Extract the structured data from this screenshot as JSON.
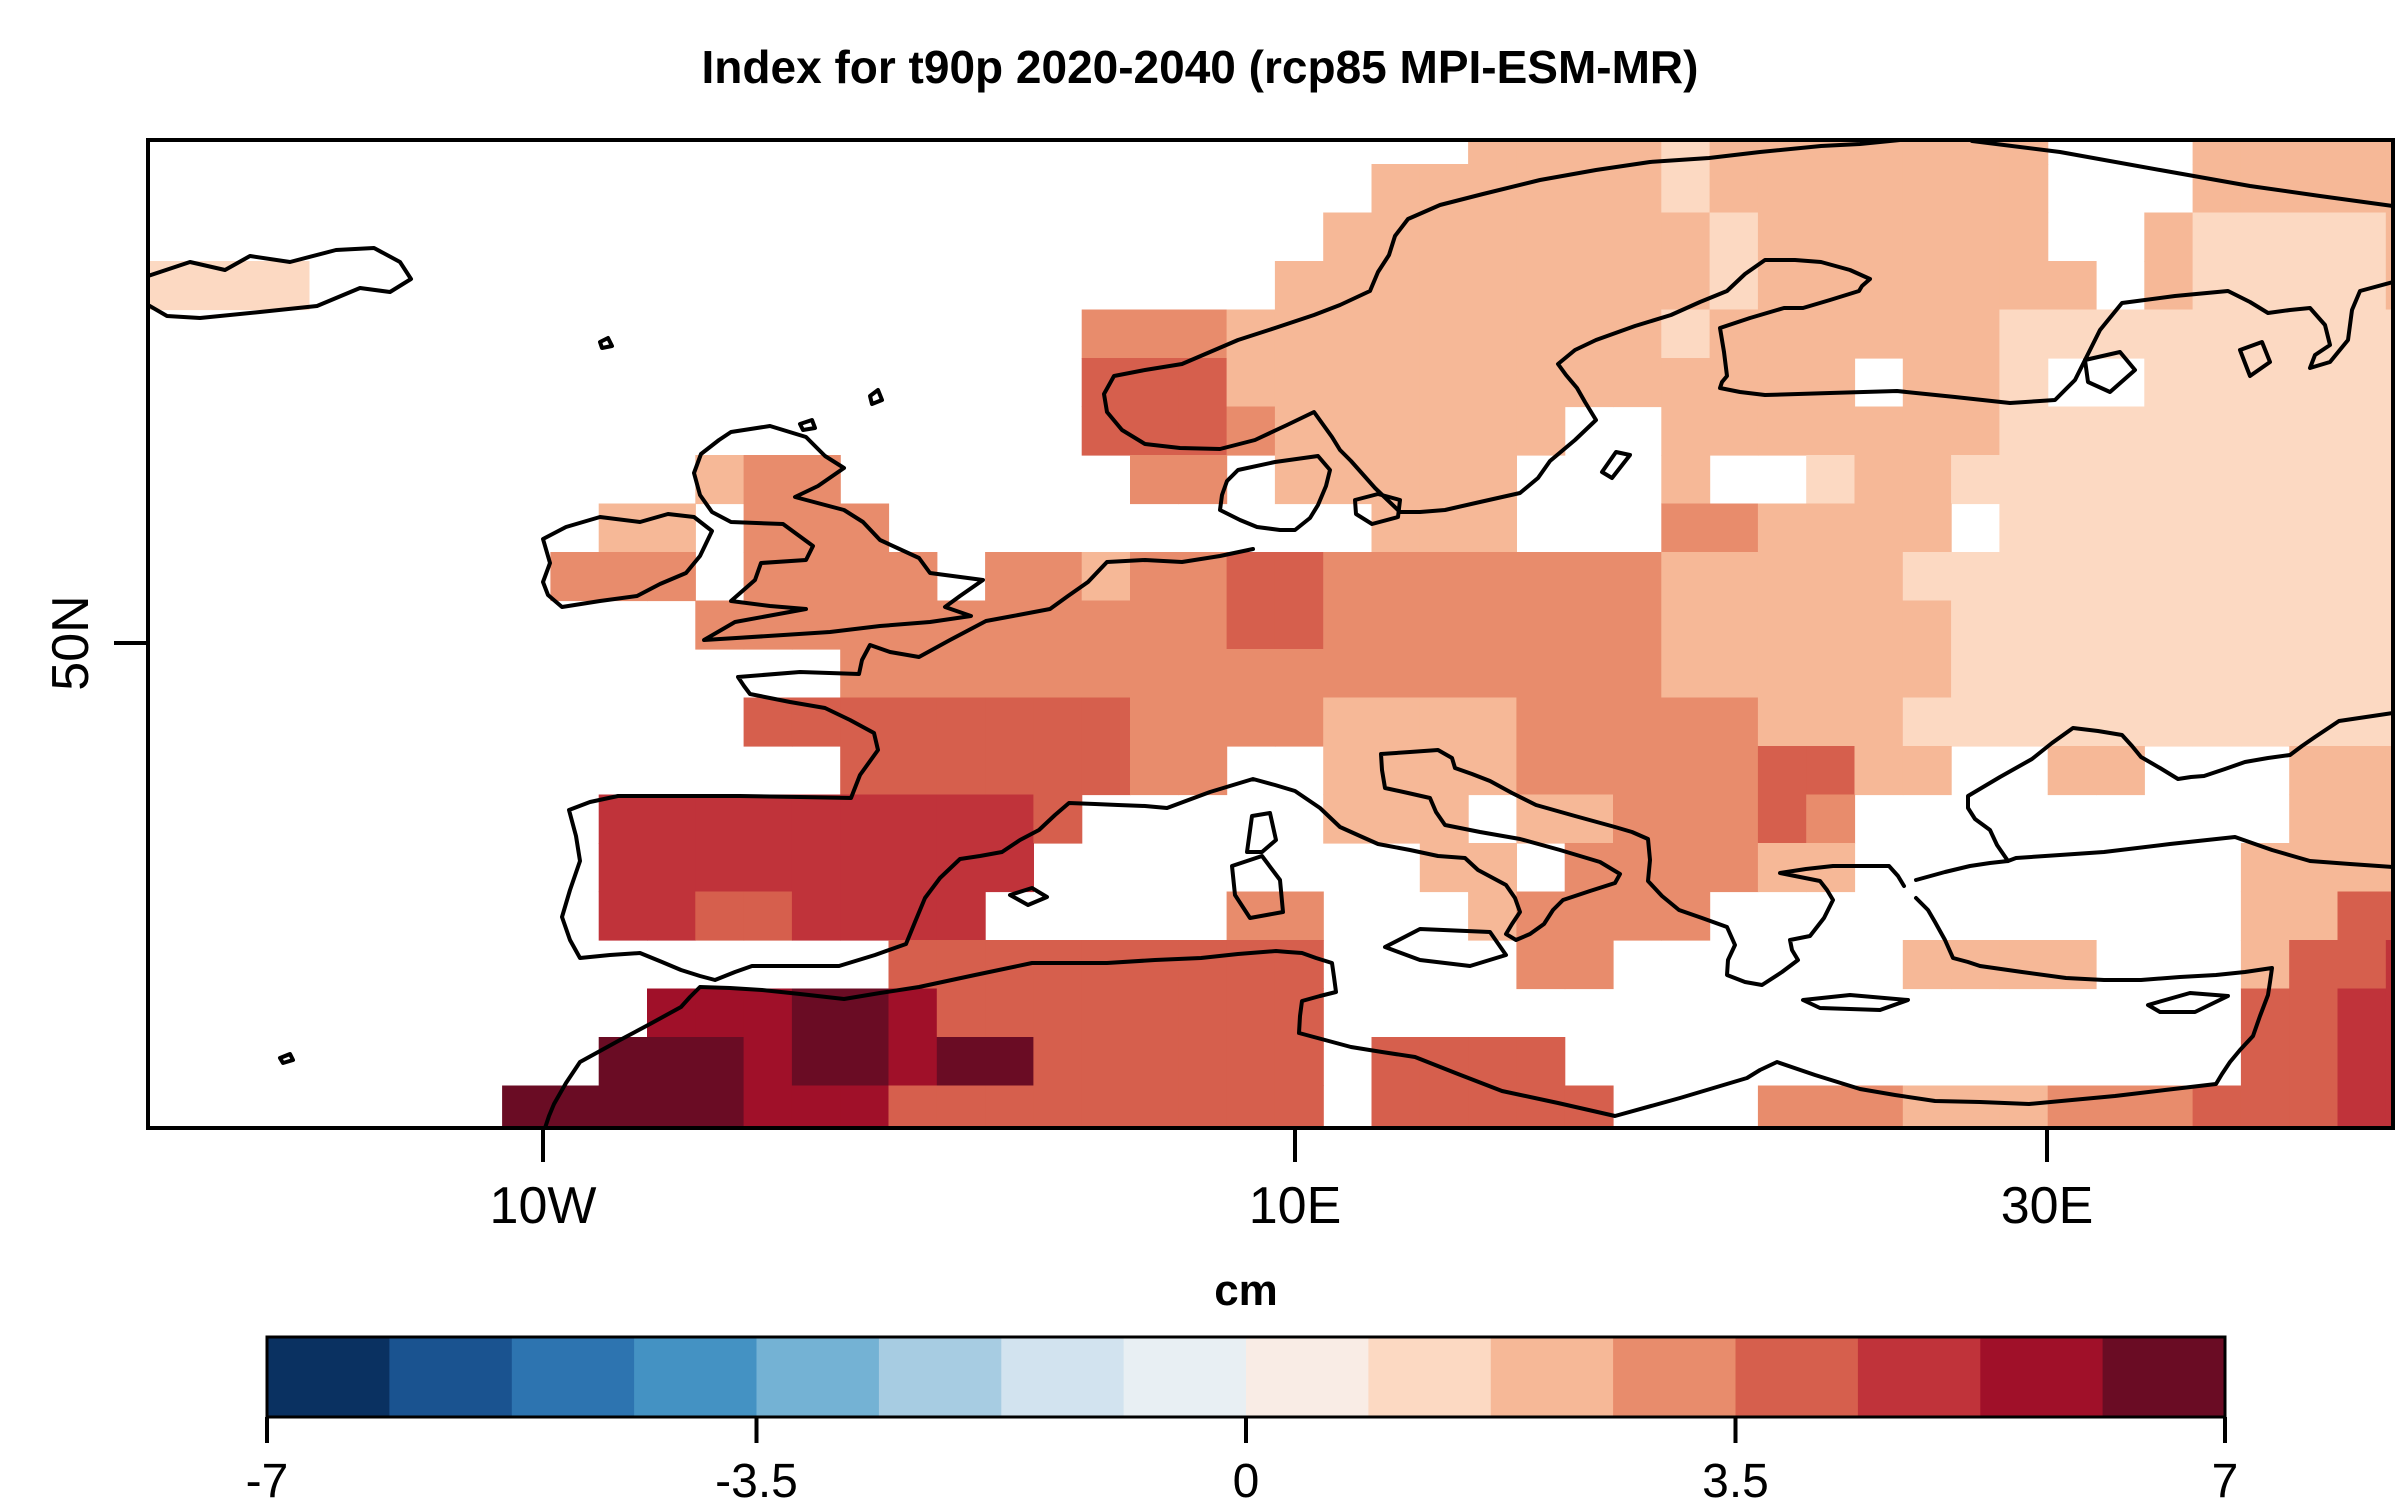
{
  "title": "Index for  t90p 2020-2040  (rcp85 MPI-ESM-MR)",
  "chart_data": {
    "type": "heatmap",
    "title": "Index for  t90p 2020-2040  (rcp85 MPI-ESM-MR)",
    "description": "Gridded climate index anomaly map over Europe; colored cells are grid-box values, white is no data / sea.",
    "map_extent": {
      "lon_min": -20.5,
      "lon_max": 39.2,
      "lat_min": 30.0,
      "lat_max": 70.8
    },
    "axes": {
      "x_ticks": [
        {
          "label": "10W",
          "lon": -10
        },
        {
          "label": "10E",
          "lon": 10
        },
        {
          "label": "30E",
          "lon": 30
        }
      ],
      "y_ticks": [
        {
          "label": "50N",
          "lat": 50
        }
      ]
    },
    "colorbar": {
      "unit": "cm",
      "min": -7,
      "max": 7,
      "n_segments": 16,
      "segment_width_value": 0.875,
      "tick_values": [
        -7,
        -3.5,
        0,
        3.5,
        7
      ],
      "tick_labels": [
        "-7",
        "-3.5",
        "0",
        "3.5",
        "7"
      ],
      "colors": [
        "#0a3161",
        "#1a5390",
        "#2d74b0",
        "#4492c3",
        "#74b2d4",
        "#a7cce2",
        "#d2e3ef",
        "#e8eff3",
        "#f9ece5",
        "#fcd9c2",
        "#f6b897",
        "#e88c6c",
        "#d65f4d",
        "#c0333a",
        "#a01029",
        "#6a0c24"
      ]
    },
    "grid": {
      "ncols": 48,
      "nrows": 21,
      "no_data_char": ".",
      "class_color_index": {
        "1": 9,
        "2": 10,
        "3": 11,
        "4": 12,
        "5": 13,
        "6": 14,
        "7": 15
      },
      "class_value_cm": {
        "1": 1.3,
        "2": 2.2,
        "3": 3.1,
        "4": 3.9,
        "5": 4.8,
        "6": 5.7,
        "7": 6.6
      },
      "rows": [
        "............................2222122222 22...22222",
        "..........................22222212222222...22222",
        ".........................222222221222222..21111 2",
        "1111....................2222222221 2222222.21111 2",
        "....................333222222222122222 2111111111",
        "....................4442222222222222.221..111111",
        "....................44432222 22..222222 2111111111",
        "............233......33.22222...2..122 1111111111",
        "..........22.333..........222...332222.111111111",
        ".........333.3333.33233 44 33333332222211111111111",
        "............33333333333 44 3333333222222 1111111111",
        "...............333333333333333332222221111111111",
        ".............44444444333322223333322211111111111",
        "...............44444433..22223333344 22..22...222",
        "..........5555555554.....222.22333 43.........222",
        "..........555555555........22.3333 22........2222",
        "..........5544555 5.....33...233 33...........2244",
        "................444444444....33......2222...2445",
        "...........66677644444444...................4455",
        "..........777677677444444.4444..............4455",
        "........77777666444444444.44444...333222333 44455"
      ],
      "rows_clean_note": "strings are sanitized in code: spaces removed, rows padded/clipped to 48 chars"
    }
  },
  "map_frame": {
    "stroke": "#000000"
  },
  "coastline": {
    "stroke": "#000000"
  },
  "background": "#ffffff"
}
